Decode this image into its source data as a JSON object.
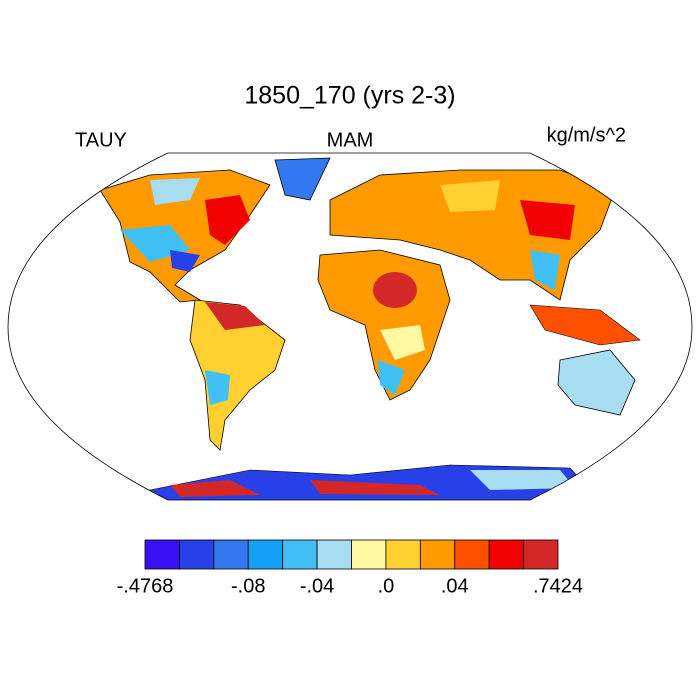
{
  "header": {
    "title": "1850_170 (yrs 2-3)",
    "left": "TAUY",
    "center": "MAM",
    "right": "kg/m/s^2"
  },
  "colorbar": {
    "colors": [
      "#3a10f5",
      "#2840e8",
      "#3478f0",
      "#14a0f5",
      "#40c0f5",
      "#a8dcf0",
      "#fff8a0",
      "#ffd030",
      "#ff9a00",
      "#ff5000",
      "#f00000",
      "#d42828"
    ],
    "labels": [
      {
        "value": -0.4768,
        "label": "-.4768"
      },
      {
        "value": -0.08,
        "label": "-.08"
      },
      {
        "value": -0.04,
        "label": "-.04"
      },
      {
        "value": 0,
        "label": ".0"
      },
      {
        "value": 0.04,
        "label": ".04"
      },
      {
        "value": 0.7424,
        "label": ".7424"
      }
    ]
  }
}
